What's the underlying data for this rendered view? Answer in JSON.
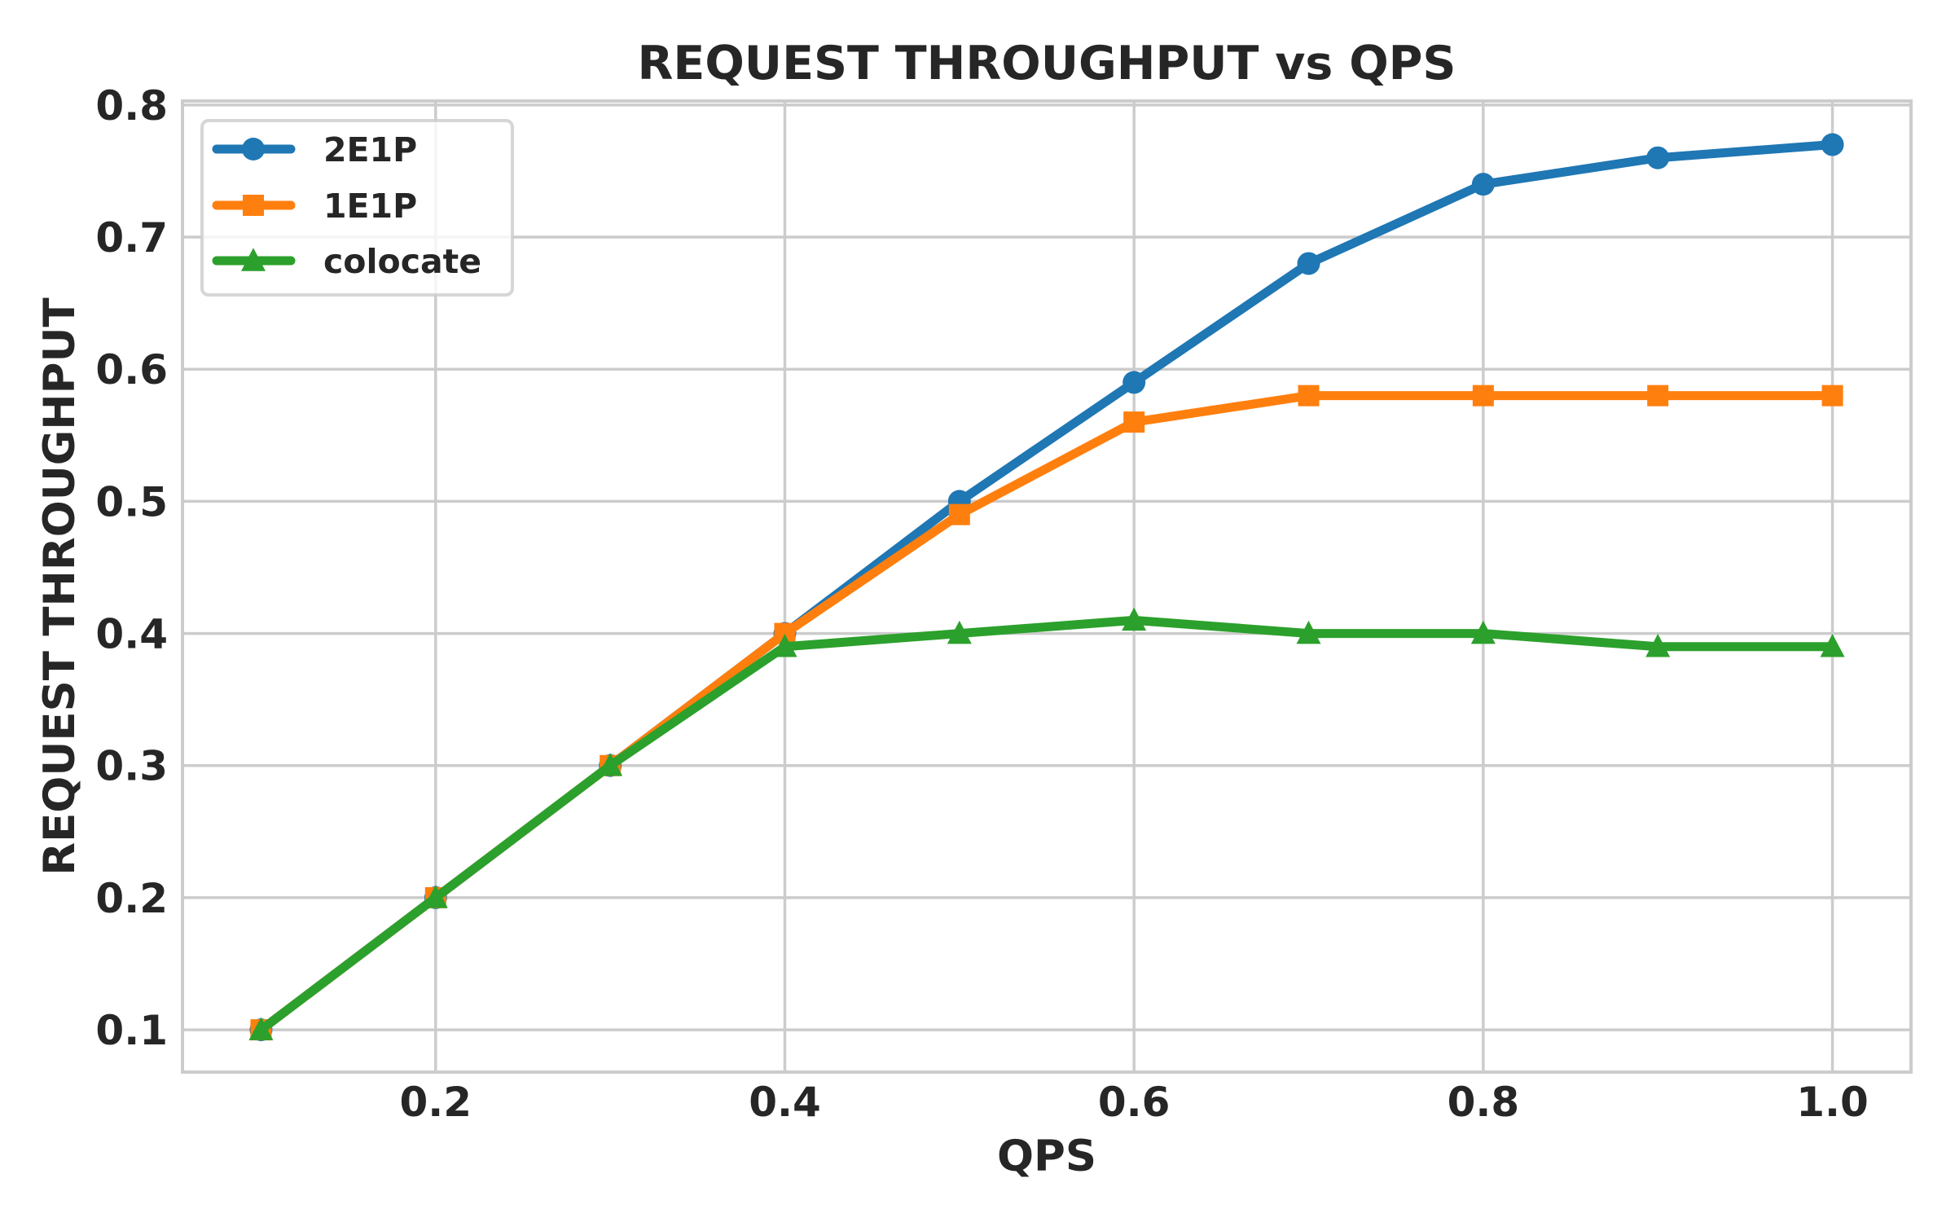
{
  "chart_data": {
    "type": "line",
    "title": "REQUEST THROUGHPUT vs QPS",
    "xlabel": "QPS",
    "ylabel": "REQUEST THROUGHPUT",
    "x": [
      0.1,
      0.2,
      0.3,
      0.4,
      0.5,
      0.6,
      0.7,
      0.8,
      0.9,
      1.0
    ],
    "series": [
      {
        "name": "2E1P",
        "color": "#1f77b4",
        "marker": "circle",
        "values": [
          0.1,
          0.2,
          0.3,
          0.4,
          0.5,
          0.59,
          0.68,
          0.74,
          0.76,
          0.77
        ]
      },
      {
        "name": "1E1P",
        "color": "#ff7f0e",
        "marker": "square",
        "values": [
          0.1,
          0.2,
          0.3,
          0.4,
          0.49,
          0.56,
          0.58,
          0.58,
          0.58,
          0.58
        ]
      },
      {
        "name": "colocate",
        "color": "#2ca02c",
        "marker": "triangle",
        "values": [
          0.1,
          0.2,
          0.3,
          0.39,
          0.4,
          0.41,
          0.4,
          0.4,
          0.39,
          0.39
        ]
      }
    ],
    "xticks": [
      0.2,
      0.4,
      0.6,
      0.8,
      1.0
    ],
    "xtick_labels": [
      "0.2",
      "0.4",
      "0.6",
      "0.8",
      "1.0"
    ],
    "yticks": [
      0.1,
      0.2,
      0.3,
      0.4,
      0.5,
      0.6,
      0.7,
      0.8
    ],
    "ytick_labels": [
      "0.1",
      "0.2",
      "0.3",
      "0.4",
      "0.5",
      "0.6",
      "0.7",
      "0.8"
    ],
    "xlim": [
      0.055,
      1.045
    ],
    "ylim": [
      0.068,
      0.803
    ],
    "grid": true,
    "legend_position": "upper left"
  },
  "colors": {
    "grid": "#cccccc",
    "text": "#262626",
    "background": "#ffffff"
  }
}
